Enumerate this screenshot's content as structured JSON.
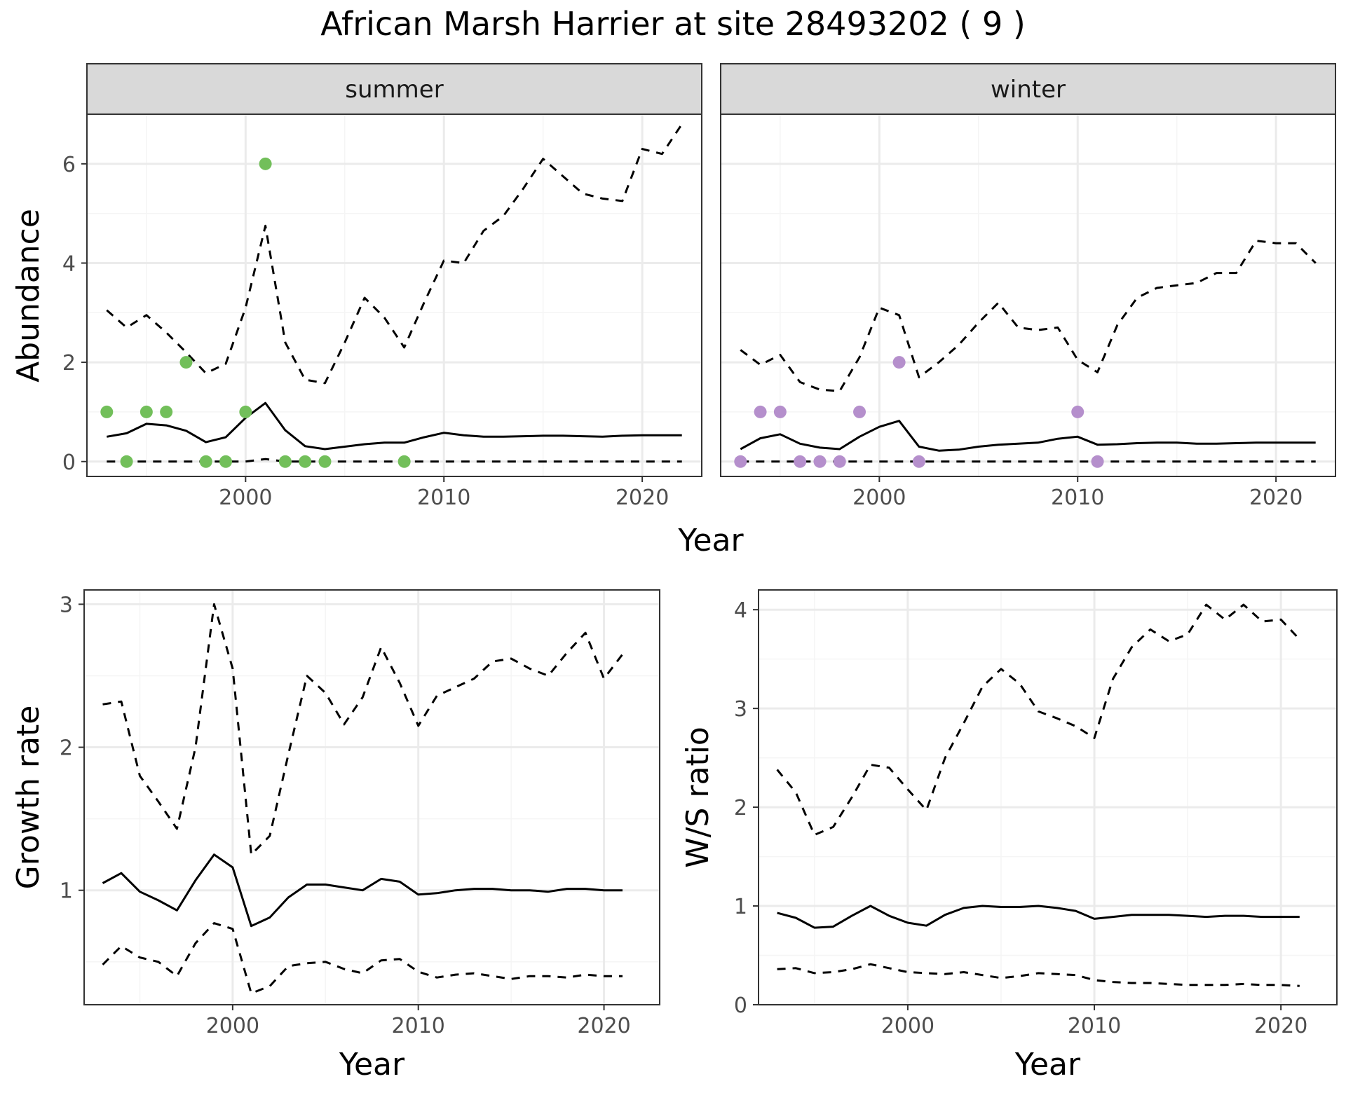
{
  "figure_title": "African Marsh Harrier at site 28493202 ( 9 )",
  "colors": {
    "summer_points": "#72bf5a",
    "winter_points": "#b58fcc",
    "lines": "#000000",
    "grid_major": "#ebebeb",
    "grid_minor": "#f5f5f5",
    "strip_bg": "#d9d9d9",
    "panel_border": "#333333"
  },
  "chart_data": [
    {
      "type": "line",
      "facet": "summer",
      "xlabel": "Year",
      "ylabel": "Abundance",
      "xlim": [
        1992,
        2023
      ],
      "ylim": [
        -0.3,
        7.0
      ],
      "xticks": [
        2000,
        2010,
        2020
      ],
      "yticks": [
        0,
        2,
        4,
        6
      ],
      "grid": true,
      "x": [
        1993,
        1994,
        1995,
        1996,
        1997,
        1998,
        1999,
        2000,
        2001,
        2002,
        2003,
        2004,
        2005,
        2006,
        2007,
        2008,
        2009,
        2010,
        2011,
        2012,
        2013,
        2014,
        2015,
        2016,
        2017,
        2018,
        2019,
        2020,
        2021,
        2022
      ],
      "series": [
        {
          "role": "estimate",
          "style": "solid",
          "values": [
            0.5,
            0.57,
            0.76,
            0.73,
            0.62,
            0.39,
            0.49,
            0.88,
            1.18,
            0.63,
            0.31,
            0.25,
            0.3,
            0.35,
            0.38,
            0.38,
            0.49,
            0.58,
            0.53,
            0.5,
            0.5,
            0.51,
            0.52,
            0.52,
            0.51,
            0.5,
            0.52,
            0.53,
            0.53,
            0.53
          ]
        },
        {
          "role": "upper",
          "style": "dashed",
          "values": [
            3.05,
            2.7,
            2.95,
            2.6,
            2.2,
            1.78,
            1.97,
            3.1,
            4.75,
            2.4,
            1.65,
            1.58,
            2.4,
            3.3,
            2.9,
            2.3,
            3.2,
            4.05,
            4.0,
            4.65,
            4.95,
            5.5,
            6.1,
            5.75,
            5.4,
            5.3,
            5.25,
            6.3,
            6.2,
            6.8
          ]
        },
        {
          "role": "lower",
          "style": "dashed",
          "values": [
            0,
            0,
            0,
            0,
            0,
            0,
            0,
            0,
            0.05,
            0,
            0,
            0,
            0,
            0,
            0,
            0,
            0,
            0,
            0,
            0,
            0,
            0,
            0,
            0,
            0,
            0,
            0,
            0,
            0,
            0
          ]
        },
        {
          "role": "observed",
          "style": "points",
          "x": [
            1993,
            1994,
            1995,
            1996,
            1997,
            1998,
            1999,
            2000,
            2001,
            2002,
            2003,
            2004,
            2008
          ],
          "values": [
            1,
            0,
            1,
            1,
            2,
            0,
            0,
            1,
            6,
            0,
            0,
            0,
            0
          ]
        }
      ]
    },
    {
      "type": "line",
      "facet": "winter",
      "xlabel": "Year",
      "ylabel": "Abundance",
      "xlim": [
        1992,
        2023
      ],
      "ylim": [
        -0.3,
        7.0
      ],
      "xticks": [
        2000,
        2010,
        2020
      ],
      "yticks": [
        0,
        2,
        4,
        6
      ],
      "grid": true,
      "x": [
        1993,
        1994,
        1995,
        1996,
        1997,
        1998,
        1999,
        2000,
        2001,
        2002,
        2003,
        2004,
        2005,
        2006,
        2007,
        2008,
        2009,
        2010,
        2011,
        2012,
        2013,
        2014,
        2015,
        2016,
        2017,
        2018,
        2019,
        2020,
        2021,
        2022
      ],
      "series": [
        {
          "role": "estimate",
          "style": "solid",
          "values": [
            0.25,
            0.47,
            0.55,
            0.36,
            0.28,
            0.25,
            0.5,
            0.7,
            0.82,
            0.3,
            0.22,
            0.24,
            0.3,
            0.34,
            0.36,
            0.38,
            0.46,
            0.5,
            0.34,
            0.35,
            0.37,
            0.38,
            0.38,
            0.36,
            0.36,
            0.37,
            0.38,
            0.38,
            0.38,
            0.38
          ]
        },
        {
          "role": "upper",
          "style": "dashed",
          "values": [
            2.25,
            1.95,
            2.15,
            1.6,
            1.45,
            1.42,
            2.1,
            3.1,
            2.95,
            1.7,
            2.0,
            2.35,
            2.8,
            3.2,
            2.7,
            2.65,
            2.7,
            2.05,
            1.8,
            2.75,
            3.3,
            3.5,
            3.55,
            3.6,
            3.8,
            3.8,
            4.45,
            4.4,
            4.4,
            4.0
          ]
        },
        {
          "role": "lower",
          "style": "dashed",
          "values": [
            0,
            0,
            0,
            0,
            0,
            0,
            0,
            0,
            0,
            0,
            0,
            0,
            0,
            0,
            0,
            0,
            0,
            0,
            0,
            0,
            0,
            0,
            0,
            0,
            0,
            0,
            0,
            0,
            0,
            0
          ]
        },
        {
          "role": "observed",
          "style": "points",
          "x": [
            1993,
            1994,
            1995,
            1996,
            1997,
            1998,
            1999,
            2001,
            2002,
            2010,
            2011
          ],
          "values": [
            0,
            1,
            1,
            0,
            0,
            0,
            1,
            2,
            0,
            1,
            0
          ]
        }
      ]
    },
    {
      "type": "line",
      "xlabel": "Year",
      "ylabel": "Growth rate",
      "xlim": [
        1992,
        2023
      ],
      "ylim": [
        0.2,
        3.1
      ],
      "xticks": [
        2000,
        2010,
        2020
      ],
      "yticks": [
        1,
        2,
        3
      ],
      "grid": true,
      "x": [
        1993,
        1994,
        1995,
        1996,
        1997,
        1998,
        1999,
        2000,
        2001,
        2002,
        2003,
        2004,
        2005,
        2006,
        2007,
        2008,
        2009,
        2010,
        2011,
        2012,
        2013,
        2014,
        2015,
        2016,
        2017,
        2018,
        2019,
        2020,
        2021
      ],
      "series": [
        {
          "role": "estimate",
          "style": "solid",
          "values": [
            1.05,
            1.12,
            0.99,
            0.93,
            0.86,
            1.07,
            1.25,
            1.16,
            0.75,
            0.81,
            0.95,
            1.04,
            1.04,
            1.02,
            1.0,
            1.08,
            1.06,
            0.97,
            0.98,
            1.0,
            1.01,
            1.01,
            1.0,
            1.0,
            0.99,
            1.01,
            1.01,
            1.0,
            1.0
          ]
        },
        {
          "role": "upper",
          "style": "dashed",
          "values": [
            2.3,
            2.32,
            1.8,
            1.62,
            1.43,
            2.0,
            3.0,
            2.55,
            1.25,
            1.38,
            1.95,
            2.5,
            2.38,
            2.16,
            2.35,
            2.7,
            2.45,
            2.15,
            2.36,
            2.42,
            2.48,
            2.6,
            2.62,
            2.55,
            2.5,
            2.66,
            2.8,
            2.48,
            2.65
          ]
        },
        {
          "role": "lower",
          "style": "dashed",
          "values": [
            0.48,
            0.61,
            0.53,
            0.5,
            0.4,
            0.63,
            0.77,
            0.73,
            0.28,
            0.33,
            0.47,
            0.49,
            0.5,
            0.45,
            0.42,
            0.51,
            0.52,
            0.43,
            0.39,
            0.41,
            0.42,
            0.4,
            0.38,
            0.4,
            0.4,
            0.39,
            0.41,
            0.4,
            0.4
          ]
        }
      ]
    },
    {
      "type": "line",
      "xlabel": "Year",
      "ylabel": "W/S ratio",
      "xlim": [
        1992,
        2023
      ],
      "ylim": [
        0,
        4.2
      ],
      "xticks": [
        2000,
        2010,
        2020
      ],
      "yticks": [
        0,
        1,
        2,
        3,
        4
      ],
      "grid": true,
      "x": [
        1993,
        1994,
        1995,
        1996,
        1997,
        1998,
        1999,
        2000,
        2001,
        2002,
        2003,
        2004,
        2005,
        2006,
        2007,
        2008,
        2009,
        2010,
        2011,
        2012,
        2013,
        2014,
        2015,
        2016,
        2017,
        2018,
        2019,
        2020,
        2021
      ],
      "series": [
        {
          "role": "estimate",
          "style": "solid",
          "values": [
            0.93,
            0.88,
            0.78,
            0.79,
            0.9,
            1.0,
            0.9,
            0.83,
            0.8,
            0.91,
            0.98,
            1.0,
            0.99,
            0.99,
            1.0,
            0.98,
            0.95,
            0.87,
            0.89,
            0.91,
            0.91,
            0.91,
            0.9,
            0.89,
            0.9,
            0.9,
            0.89,
            0.89,
            0.89
          ]
        },
        {
          "role": "upper",
          "style": "dashed",
          "values": [
            2.38,
            2.15,
            1.72,
            1.8,
            2.1,
            2.43,
            2.4,
            2.18,
            1.97,
            2.5,
            2.85,
            3.22,
            3.4,
            3.25,
            2.97,
            2.9,
            2.82,
            2.7,
            3.3,
            3.62,
            3.8,
            3.68,
            3.75,
            4.05,
            3.9,
            4.05,
            3.88,
            3.9,
            3.7
          ]
        },
        {
          "role": "lower",
          "style": "dashed",
          "values": [
            0.36,
            0.37,
            0.32,
            0.33,
            0.36,
            0.41,
            0.37,
            0.33,
            0.32,
            0.31,
            0.33,
            0.3,
            0.27,
            0.29,
            0.32,
            0.31,
            0.3,
            0.25,
            0.23,
            0.22,
            0.22,
            0.21,
            0.2,
            0.2,
            0.2,
            0.21,
            0.2,
            0.2,
            0.19
          ]
        }
      ]
    }
  ]
}
